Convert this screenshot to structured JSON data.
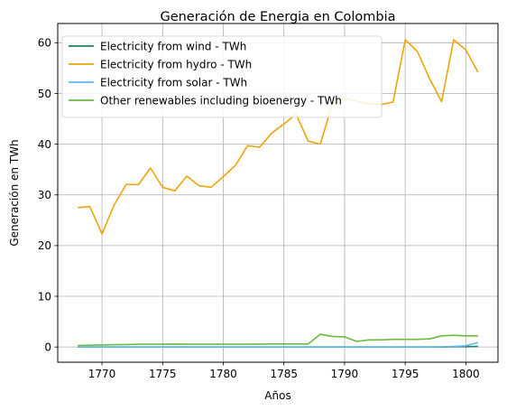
{
  "chart_data": {
    "type": "line",
    "title": "Generación de Energia en Colombia",
    "xlabel": "Años",
    "ylabel": "Generación en TWh",
    "xlim": [
      1766.35,
      1802.65
    ],
    "ylim": [
      -3.0,
      63.8
    ],
    "xticks": [
      1770,
      1775,
      1780,
      1785,
      1790,
      1795,
      1800
    ],
    "yticks": [
      0,
      10,
      20,
      30,
      40,
      50,
      60
    ],
    "grid": true,
    "legend_position": "upper-left",
    "x": [
      1768,
      1769,
      1770,
      1771,
      1772,
      1773,
      1774,
      1775,
      1776,
      1777,
      1778,
      1779,
      1780,
      1781,
      1782,
      1783,
      1784,
      1785,
      1786,
      1787,
      1788,
      1789,
      1790,
      1791,
      1792,
      1793,
      1794,
      1795,
      1796,
      1797,
      1798,
      1799,
      1800,
      1801
    ],
    "series": [
      {
        "name": "Electricity from wind - TWh",
        "color": "#1a7f64",
        "values": [
          0,
          0,
          0,
          0,
          0,
          0,
          0,
          0,
          0,
          0,
          0,
          0,
          0,
          0,
          0,
          0,
          0,
          0,
          0,
          0,
          0,
          0,
          0,
          0,
          0,
          0,
          0,
          0,
          0,
          0,
          0,
          0.05,
          0.07,
          0.1
        ]
      },
      {
        "name": "Electricity from hydro - TWh",
        "color": "#f0a30a",
        "values": [
          27.5,
          27.7,
          22.3,
          28.0,
          32.1,
          32.0,
          35.3,
          31.5,
          30.8,
          33.7,
          31.8,
          31.5,
          33.6,
          35.8,
          39.7,
          39.4,
          42.2,
          44.0,
          45.9,
          40.6,
          40.0,
          48.0,
          49.0,
          48.5,
          48.0,
          47.8,
          48.3,
          60.6,
          58.3,
          53.0,
          48.4,
          60.6,
          58.6,
          54.2
        ]
      },
      {
        "name": "Electricity from solar - TWh",
        "color": "#5bb7f0",
        "values": [
          0,
          0,
          0,
          0,
          0,
          0,
          0,
          0,
          0,
          0,
          0,
          0,
          0,
          0,
          0,
          0,
          0,
          0,
          0,
          0,
          0,
          0,
          0,
          0,
          0,
          0,
          0,
          0,
          0,
          0,
          0.03,
          0.1,
          0.25,
          0.9
        ]
      },
      {
        "name": "Other renewables including bioenergy - TWh",
        "color": "#6cbb3c",
        "values": [
          0.3,
          0.35,
          0.4,
          0.45,
          0.5,
          0.55,
          0.55,
          0.55,
          0.58,
          0.55,
          0.55,
          0.55,
          0.55,
          0.55,
          0.55,
          0.58,
          0.6,
          0.6,
          0.6,
          0.6,
          2.5,
          2.1,
          2.0,
          1.1,
          1.4,
          1.4,
          1.5,
          1.5,
          1.5,
          1.6,
          2.2,
          2.3,
          2.2,
          2.2
        ]
      }
    ]
  }
}
